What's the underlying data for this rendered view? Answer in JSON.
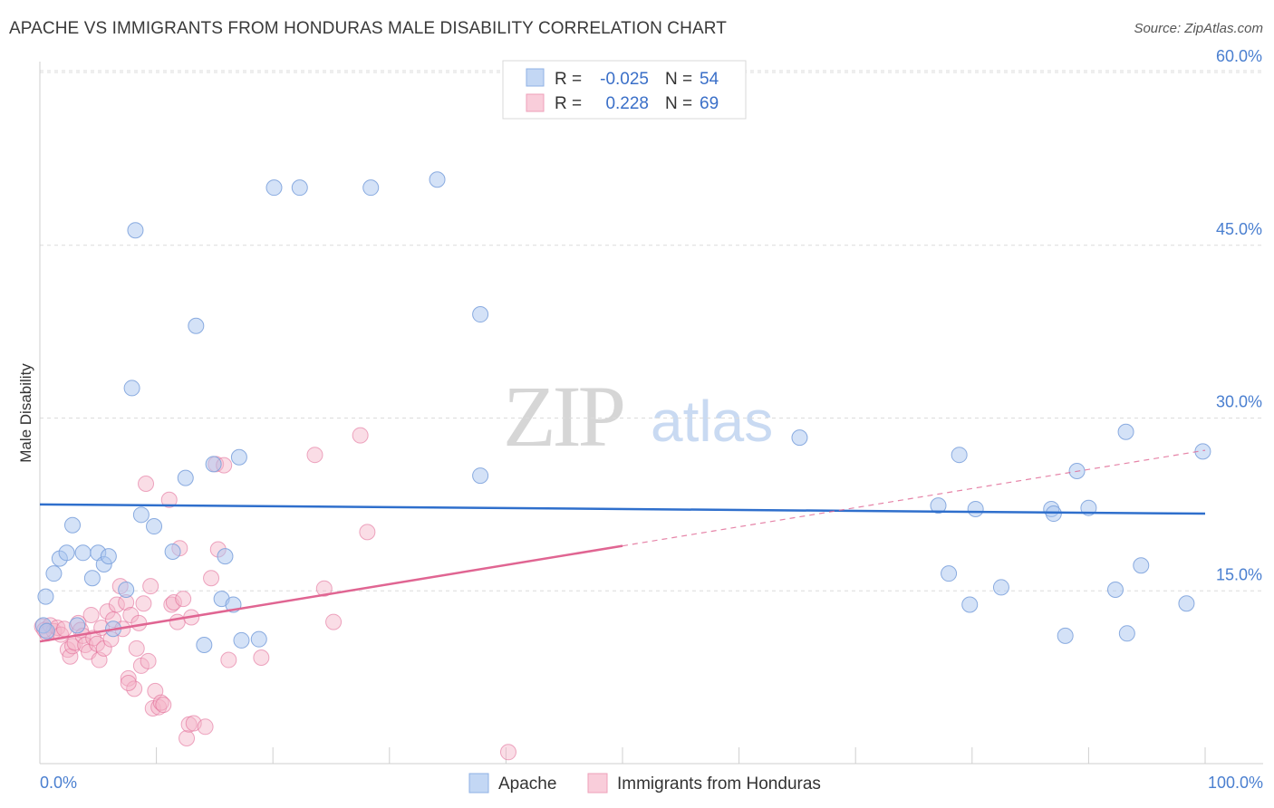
{
  "title": "APACHE VS IMMIGRANTS FROM HONDURAS MALE DISABILITY CORRELATION CHART",
  "source": "Source: ZipAtlas.com",
  "watermark": {
    "zip": "ZIP",
    "atlas": "atlas"
  },
  "colors": {
    "apache": "#a9c6f0",
    "apache_line": "#2f6fcc",
    "honduras": "#f5b3c8",
    "honduras_line": "#e06592",
    "axis_label": "#4a7fd0"
  },
  "legend_top": [
    {
      "r_label": "R = ",
      "r_value": "-0.025",
      "n_label": "N = ",
      "n_value": "54"
    },
    {
      "r_label": "R = ",
      "r_value": "0.228",
      "n_label": "N = ",
      "n_value": "69"
    }
  ],
  "chart_data": {
    "type": "scatter",
    "title": "APACHE VS IMMIGRANTS FROM HONDURAS MALE DISABILITY CORRELATION CHART",
    "xlabel": "",
    "ylabel": "Male Disability",
    "xlim": [
      0,
      100
    ],
    "ylim": [
      0,
      60
    ],
    "x_tick_labels": [
      "0.0%",
      "100.0%"
    ],
    "y_ticks": [
      15,
      30,
      45,
      60
    ],
    "y_tick_labels": [
      "15.0%",
      "30.0%",
      "45.0%",
      "60.0%"
    ],
    "series": [
      {
        "name": "Apache",
        "r": -0.025,
        "n": 54,
        "trend": {
          "x": [
            0,
            100
          ],
          "y": [
            22.5,
            21.7
          ]
        },
        "points": [
          [
            0.5,
            14.5
          ],
          [
            1.2,
            16.5
          ],
          [
            1.7,
            17.8
          ],
          [
            2.3,
            18.3
          ],
          [
            2.8,
            20.7
          ],
          [
            3.2,
            12.0
          ],
          [
            3.7,
            18.3
          ],
          [
            4.5,
            16.1
          ],
          [
            5.0,
            18.3
          ],
          [
            5.5,
            17.3
          ],
          [
            5.9,
            18.0
          ],
          [
            6.3,
            11.7
          ],
          [
            7.4,
            15.1
          ],
          [
            7.9,
            32.6
          ],
          [
            8.2,
            46.3
          ],
          [
            8.7,
            21.6
          ],
          [
            9.8,
            20.6
          ],
          [
            11.4,
            18.4
          ],
          [
            12.5,
            24.8
          ],
          [
            13.4,
            38.0
          ],
          [
            14.1,
            10.3
          ],
          [
            14.9,
            26.0
          ],
          [
            15.6,
            14.3
          ],
          [
            15.9,
            18.0
          ],
          [
            16.6,
            13.8
          ],
          [
            17.1,
            26.6
          ],
          [
            17.3,
            10.7
          ],
          [
            18.8,
            10.8
          ],
          [
            20.1,
            50.0
          ],
          [
            22.3,
            50.0
          ],
          [
            28.4,
            50.0
          ],
          [
            34.1,
            50.7
          ],
          [
            37.8,
            39.0
          ],
          [
            37.8,
            25.0
          ],
          [
            65.2,
            28.3
          ],
          [
            77.1,
            22.4
          ],
          [
            78.0,
            16.5
          ],
          [
            78.9,
            26.8
          ],
          [
            79.8,
            13.8
          ],
          [
            80.3,
            22.1
          ],
          [
            82.5,
            15.3
          ],
          [
            86.8,
            22.1
          ],
          [
            87.0,
            21.7
          ],
          [
            88.0,
            11.1
          ],
          [
            89.0,
            25.4
          ],
          [
            90.0,
            22.2
          ],
          [
            92.3,
            15.1
          ],
          [
            93.2,
            28.8
          ],
          [
            93.3,
            11.3
          ],
          [
            94.5,
            17.2
          ],
          [
            98.4,
            13.9
          ],
          [
            99.8,
            27.1
          ],
          [
            0.3,
            12.0
          ],
          [
            0.6,
            11.5
          ]
        ]
      },
      {
        "name": "Immigrants from Honduras",
        "r": 0.228,
        "n": 69,
        "trend_solid": {
          "x": [
            0,
            50
          ],
          "y": [
            10.6,
            18.9
          ]
        },
        "trend_dashed": {
          "x": [
            50,
            100
          ],
          "y": [
            18.9,
            27.2
          ]
        },
        "points": [
          [
            0.2,
            11.9
          ],
          [
            0.6,
            11.3
          ],
          [
            0.9,
            12.0
          ],
          [
            1.2,
            11.5
          ],
          [
            1.5,
            11.8
          ],
          [
            1.8,
            11.2
          ],
          [
            2.1,
            11.7
          ],
          [
            2.4,
            9.9
          ],
          [
            2.6,
            9.3
          ],
          [
            2.8,
            10.2
          ],
          [
            3.0,
            10.5
          ],
          [
            3.3,
            12.2
          ],
          [
            3.5,
            11.6
          ],
          [
            3.7,
            11.1
          ],
          [
            3.9,
            10.3
          ],
          [
            4.2,
            9.7
          ],
          [
            4.4,
            12.9
          ],
          [
            4.6,
            10.9
          ],
          [
            4.9,
            10.4
          ],
          [
            5.1,
            9.0
          ],
          [
            5.3,
            11.8
          ],
          [
            5.5,
            10.0
          ],
          [
            5.8,
            13.2
          ],
          [
            6.1,
            10.8
          ],
          [
            6.3,
            12.5
          ],
          [
            6.6,
            13.8
          ],
          [
            6.9,
            15.4
          ],
          [
            7.1,
            11.7
          ],
          [
            7.4,
            14.0
          ],
          [
            7.6,
            7.4
          ],
          [
            7.8,
            12.9
          ],
          [
            8.1,
            6.5
          ],
          [
            8.3,
            10.0
          ],
          [
            8.5,
            12.2
          ],
          [
            8.7,
            8.5
          ],
          [
            8.9,
            13.9
          ],
          [
            9.1,
            24.3
          ],
          [
            9.3,
            8.9
          ],
          [
            9.5,
            15.4
          ],
          [
            9.7,
            4.8
          ],
          [
            9.9,
            6.3
          ],
          [
            10.2,
            4.9
          ],
          [
            10.4,
            5.3
          ],
          [
            10.6,
            5.1
          ],
          [
            11.1,
            22.9
          ],
          [
            11.3,
            13.8
          ],
          [
            11.5,
            14.0
          ],
          [
            11.8,
            12.3
          ],
          [
            12.0,
            18.7
          ],
          [
            12.3,
            14.3
          ],
          [
            12.6,
            2.2
          ],
          [
            12.8,
            3.4
          ],
          [
            13.0,
            12.7
          ],
          [
            13.2,
            3.5
          ],
          [
            14.2,
            3.2
          ],
          [
            14.7,
            16.1
          ],
          [
            15.1,
            26.0
          ],
          [
            15.3,
            18.6
          ],
          [
            15.8,
            25.9
          ],
          [
            16.2,
            9.0
          ],
          [
            19.0,
            9.2
          ],
          [
            23.6,
            26.8
          ],
          [
            24.4,
            15.2
          ],
          [
            25.2,
            12.3
          ],
          [
            27.5,
            28.5
          ],
          [
            28.1,
            20.1
          ],
          [
            40.2,
            1.0
          ],
          [
            7.6,
            7.0
          ],
          [
            0.4,
            11.6
          ]
        ]
      }
    ]
  },
  "legend_bottom": [
    "Apache",
    "Immigrants from Honduras"
  ]
}
